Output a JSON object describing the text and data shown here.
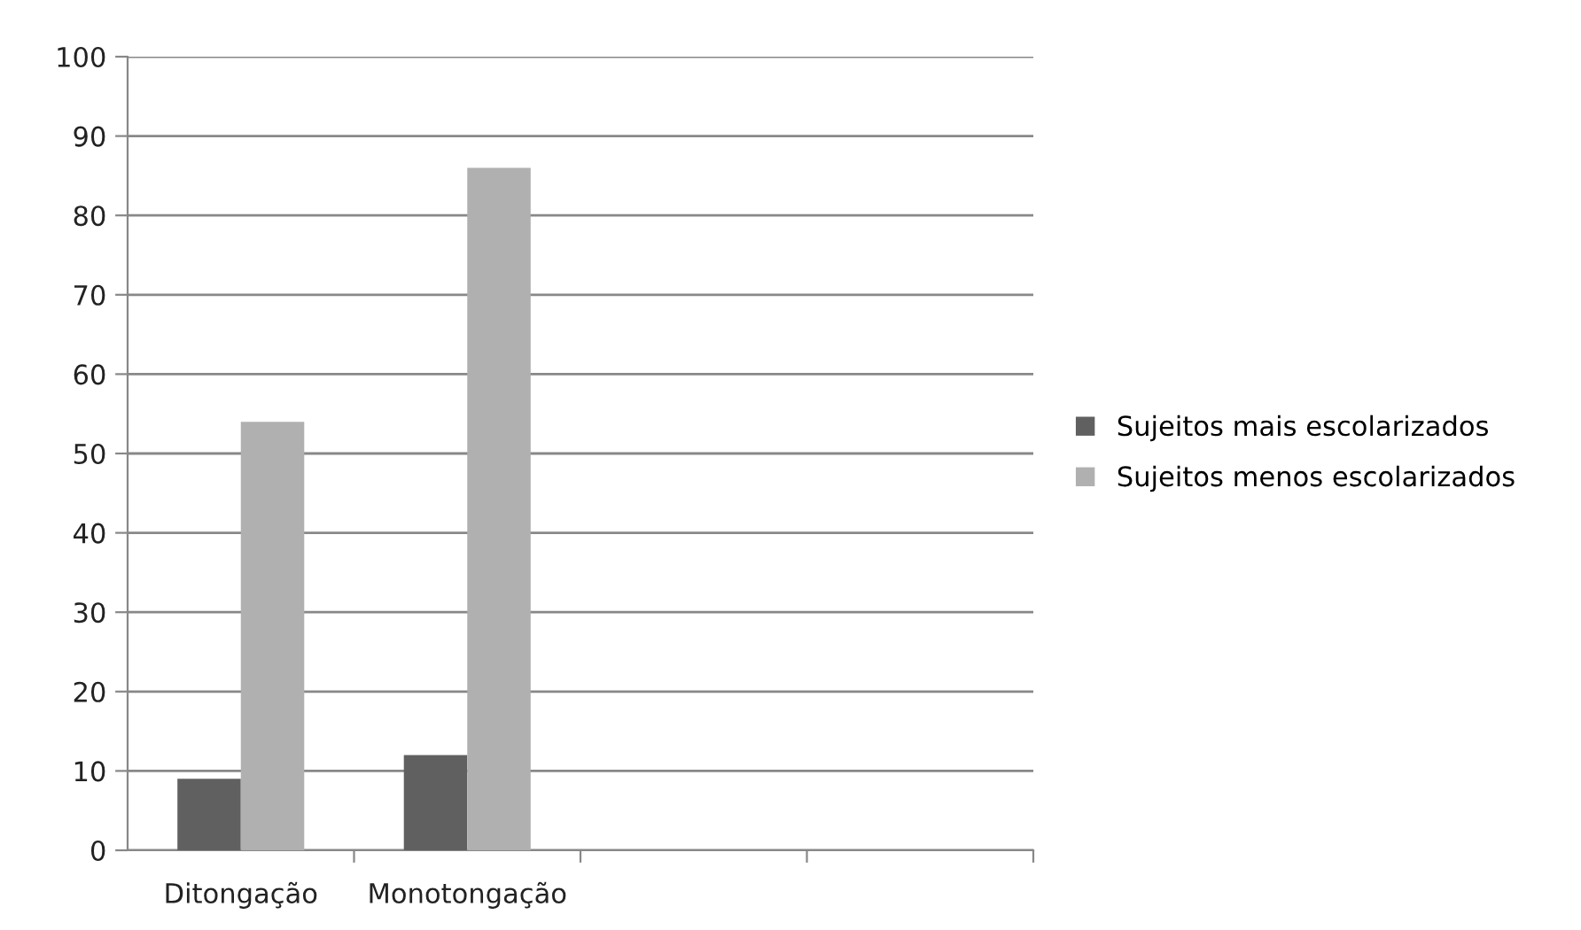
{
  "chart_data": {
    "type": "bar",
    "categories": [
      "Ditongação",
      "Monotongação",
      null,
      null
    ],
    "series": [
      {
        "name": "Sujeitos mais escolarizados",
        "color": "#606060",
        "values": [
          9,
          12,
          null,
          null
        ]
      },
      {
        "name": "Sujeitos menos escolarizados",
        "color": "#b0b0b0",
        "values": [
          54,
          86,
          null,
          null
        ]
      }
    ],
    "ylim": [
      0,
      100
    ],
    "yticks": [
      0,
      10,
      20,
      30,
      40,
      50,
      60,
      70,
      80,
      90,
      100
    ],
    "grid": "y",
    "legend": "right"
  }
}
